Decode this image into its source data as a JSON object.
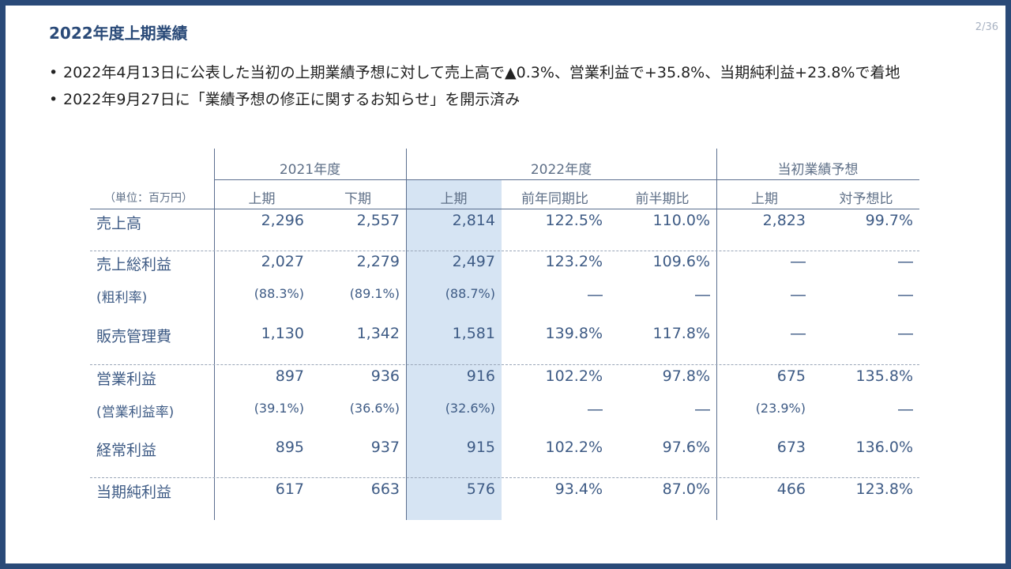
{
  "title": "2022年度上期業績",
  "page_number": "2/36",
  "bullets": [
    "2022年4月13日に公表した当初の上期業績予想に対して売上高で▲0.3%、営業利益で+35.8%、当期純利益+23.8%で着地",
    "2022年9月27日に「業績予想の修正に関するお知らせ」を開示済み"
  ],
  "table": {
    "unit": "（単位：百万円）",
    "groups": [
      "2021年度",
      "2022年度",
      "当初業績予想"
    ],
    "columns": [
      "上期",
      "下期",
      "上期",
      "前年同期比",
      "前半期比",
      "上期",
      "対予想比"
    ],
    "rows": [
      {
        "label": "売上高",
        "values": [
          "2,296",
          "2,557",
          "2,814",
          "122.5%",
          "110.0%",
          "2,823",
          "99.7%"
        ]
      },
      {
        "label": "売上総利益",
        "values": [
          "2,027",
          "2,279",
          "2,497",
          "123.2%",
          "109.6%",
          "―",
          "―"
        ]
      },
      {
        "label": "(粗利率)",
        "values": [
          "(88.3%)",
          "(89.1%)",
          "(88.7%)",
          "―",
          "―",
          "―",
          "―"
        ]
      },
      {
        "label": "販売管理費",
        "values": [
          "1,130",
          "1,342",
          "1,581",
          "139.8%",
          "117.8%",
          "―",
          "―"
        ]
      },
      {
        "label": "営業利益",
        "values": [
          "897",
          "936",
          "916",
          "102.2%",
          "97.8%",
          "675",
          "135.8%"
        ]
      },
      {
        "label": "(営業利益率)",
        "values": [
          "(39.1%)",
          "(36.6%)",
          "(32.6%)",
          "―",
          "―",
          "(23.9%)",
          "―"
        ]
      },
      {
        "label": "経常利益",
        "values": [
          "895",
          "937",
          "915",
          "102.2%",
          "97.6%",
          "673",
          "136.0%"
        ]
      },
      {
        "label": "当期純利益",
        "values": [
          "617",
          "663",
          "576",
          "93.4%",
          "87.0%",
          "466",
          "123.8%"
        ]
      }
    ]
  }
}
